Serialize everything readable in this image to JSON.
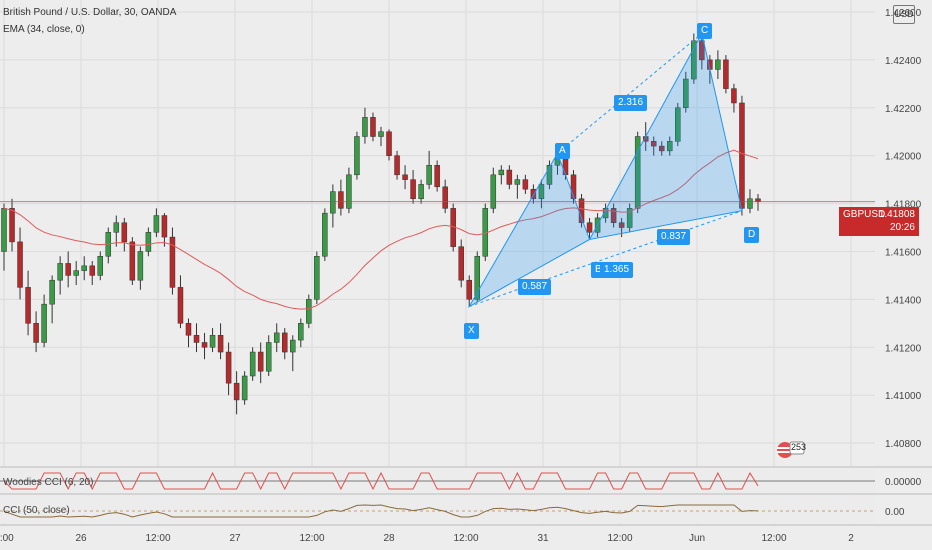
{
  "header": {
    "title": "British Pound / U.S. Dollar, 30, OANDA",
    "ema_label": "EMA (34, close, 0)",
    "woodies_label": "Woodies CCI (6, 20)",
    "cci_label": "CCI (50, close)",
    "currency": "USD"
  },
  "price_tag": {
    "symbol": "GBPUSD",
    "price": "1.41808",
    "countdown": "20:26"
  },
  "badge_number": "253",
  "chart_data": {
    "type": "candlestick",
    "price_axis": {
      "ticks": [
        "1.42600",
        "1.42400",
        "1.42200",
        "1.42000",
        "1.41800",
        "1.41600",
        "1.41400",
        "1.41200",
        "1.41000",
        "1.40800"
      ],
      "range": [
        1.407,
        1.4265
      ]
    },
    "time_axis": {
      "ticks": [
        "2:00",
        "26",
        "12:00",
        "27",
        "12:00",
        "28",
        "12:00",
        "31",
        "12:00",
        "Jun",
        "12:00",
        "2"
      ]
    },
    "last_price": 1.41808,
    "indicators": [
      {
        "name": "Woodies CCI (6, 20)",
        "ticks": [
          "0.00000"
        ]
      },
      {
        "name": "CCI (50, close)",
        "ticks": [
          "0.00"
        ]
      }
    ],
    "pattern": {
      "points": [
        {
          "label": "X",
          "price": 1.4137
        },
        {
          "label": "A",
          "price": 1.4201
        },
        {
          "label": "B",
          "price": 1.4165
        },
        {
          "label": "C",
          "price": 1.4251
        },
        {
          "label": "D",
          "price": 1.4177
        }
      ],
      "ratios": [
        "0.587",
        "2.316",
        "0.837",
        "1.365"
      ]
    },
    "candles": [
      [
        1.416,
        1.418,
        1.4152,
        1.4178
      ],
      [
        1.4178,
        1.4182,
        1.416,
        1.4164
      ],
      [
        1.4164,
        1.417,
        1.414,
        1.4145
      ],
      [
        1.4145,
        1.4152,
        1.4125,
        1.413
      ],
      [
        1.413,
        1.4135,
        1.4118,
        1.4122
      ],
      [
        1.4122,
        1.4142,
        1.412,
        1.4138
      ],
      [
        1.4138,
        1.415,
        1.413,
        1.4148
      ],
      [
        1.4148,
        1.4158,
        1.4142,
        1.4155
      ],
      [
        1.4155,
        1.416,
        1.4145,
        1.415
      ],
      [
        1.415,
        1.4156,
        1.4146,
        1.4152
      ],
      [
        1.4152,
        1.4158,
        1.4148,
        1.4154
      ],
      [
        1.4154,
        1.4156,
        1.4146,
        1.415
      ],
      [
        1.415,
        1.416,
        1.4148,
        1.4158
      ],
      [
        1.4158,
        1.417,
        1.4155,
        1.4168
      ],
      [
        1.4168,
        1.4175,
        1.4162,
        1.4172
      ],
      [
        1.4172,
        1.4174,
        1.416,
        1.4164
      ],
      [
        1.4164,
        1.4166,
        1.4146,
        1.4148
      ],
      [
        1.4148,
        1.4162,
        1.4144,
        1.416
      ],
      [
        1.416,
        1.417,
        1.4158,
        1.4168
      ],
      [
        1.4168,
        1.4178,
        1.4166,
        1.4175
      ],
      [
        1.4175,
        1.4176,
        1.4162,
        1.4166
      ],
      [
        1.4166,
        1.417,
        1.4142,
        1.4145
      ],
      [
        1.4145,
        1.415,
        1.4128,
        1.413
      ],
      [
        1.413,
        1.4132,
        1.412,
        1.4125
      ],
      [
        1.4125,
        1.413,
        1.4118,
        1.4122
      ],
      [
        1.4122,
        1.4126,
        1.4115,
        1.412
      ],
      [
        1.412,
        1.4128,
        1.4118,
        1.4125
      ],
      [
        1.4125,
        1.413,
        1.4115,
        1.4118
      ],
      [
        1.4118,
        1.4122,
        1.41,
        1.4105
      ],
      [
        1.4105,
        1.411,
        1.4092,
        1.4098
      ],
      [
        1.4098,
        1.411,
        1.4096,
        1.4108
      ],
      [
        1.4108,
        1.412,
        1.4106,
        1.4118
      ],
      [
        1.4118,
        1.4122,
        1.4105,
        1.411
      ],
      [
        1.411,
        1.4125,
        1.4108,
        1.4122
      ],
      [
        1.4122,
        1.413,
        1.4118,
        1.4126
      ],
      [
        1.4126,
        1.4128,
        1.4115,
        1.4118
      ],
      [
        1.4118,
        1.4125,
        1.411,
        1.4123
      ],
      [
        1.4123,
        1.4132,
        1.412,
        1.413
      ],
      [
        1.413,
        1.4142,
        1.4128,
        1.414
      ],
      [
        1.414,
        1.416,
        1.4138,
        1.4158
      ],
      [
        1.4158,
        1.4178,
        1.4156,
        1.4176
      ],
      [
        1.4176,
        1.4188,
        1.417,
        1.4185
      ],
      [
        1.4185,
        1.419,
        1.4175,
        1.4178
      ],
      [
        1.4178,
        1.4195,
        1.4176,
        1.4192
      ],
      [
        1.4192,
        1.421,
        1.419,
        1.4208
      ],
      [
        1.4208,
        1.422,
        1.4205,
        1.4216
      ],
      [
        1.4216,
        1.4218,
        1.4206,
        1.4208
      ],
      [
        1.4208,
        1.4212,
        1.4204,
        1.421
      ],
      [
        1.421,
        1.4211,
        1.4198,
        1.42
      ],
      [
        1.42,
        1.4202,
        1.419,
        1.4192
      ],
      [
        1.4192,
        1.4196,
        1.4186,
        1.419
      ],
      [
        1.419,
        1.4194,
        1.418,
        1.4182
      ],
      [
        1.4182,
        1.419,
        1.418,
        1.4188
      ],
      [
        1.4188,
        1.4202,
        1.4186,
        1.4196
      ],
      [
        1.4196,
        1.4198,
        1.4185,
        1.4187
      ],
      [
        1.4187,
        1.419,
        1.4176,
        1.4178
      ],
      [
        1.4178,
        1.418,
        1.416,
        1.4162
      ],
      [
        1.4162,
        1.4165,
        1.4145,
        1.4148
      ],
      [
        1.4148,
        1.415,
        1.4137,
        1.414
      ],
      [
        1.414,
        1.416,
        1.4139,
        1.4158
      ],
      [
        1.4158,
        1.418,
        1.4156,
        1.4178
      ],
      [
        1.4178,
        1.4195,
        1.4176,
        1.4192
      ],
      [
        1.4192,
        1.4196,
        1.4188,
        1.4194
      ],
      [
        1.4194,
        1.4196,
        1.4186,
        1.4188
      ],
      [
        1.4188,
        1.4192,
        1.4182,
        1.419
      ],
      [
        1.419,
        1.4192,
        1.4184,
        1.4186
      ],
      [
        1.4186,
        1.4188,
        1.418,
        1.4182
      ],
      [
        1.4182,
        1.419,
        1.4178,
        1.4188
      ],
      [
        1.4188,
        1.4198,
        1.4186,
        1.4196
      ],
      [
        1.4196,
        1.4201,
        1.4192,
        1.4199
      ],
      [
        1.4199,
        1.42,
        1.419,
        1.4192
      ],
      [
        1.4192,
        1.4194,
        1.418,
        1.4182
      ],
      [
        1.4182,
        1.4184,
        1.417,
        1.4172
      ],
      [
        1.4172,
        1.4174,
        1.4165,
        1.4168
      ],
      [
        1.4168,
        1.4176,
        1.4166,
        1.4174
      ],
      [
        1.4174,
        1.418,
        1.4172,
        1.4178
      ],
      [
        1.4178,
        1.418,
        1.417,
        1.4172
      ],
      [
        1.4172,
        1.4174,
        1.4166,
        1.417
      ],
      [
        1.417,
        1.418,
        1.4168,
        1.4178
      ],
      [
        1.4178,
        1.421,
        1.4176,
        1.4208
      ],
      [
        1.4208,
        1.4214,
        1.4202,
        1.4206
      ],
      [
        1.4206,
        1.4208,
        1.42,
        1.4204
      ],
      [
        1.4204,
        1.4206,
        1.42,
        1.4202
      ],
      [
        1.4202,
        1.4208,
        1.42,
        1.4206
      ],
      [
        1.4206,
        1.4222,
        1.4204,
        1.422
      ],
      [
        1.422,
        1.4235,
        1.4218,
        1.4232
      ],
      [
        1.4232,
        1.4251,
        1.423,
        1.4248
      ],
      [
        1.4248,
        1.425,
        1.4236,
        1.424
      ],
      [
        1.424,
        1.4242,
        1.423,
        1.4236
      ],
      [
        1.4236,
        1.4244,
        1.4232,
        1.424
      ],
      [
        1.424,
        1.4242,
        1.4226,
        1.4228
      ],
      [
        1.4228,
        1.423,
        1.4218,
        1.4222
      ],
      [
        1.4222,
        1.4225,
        1.4175,
        1.4178
      ],
      [
        1.4178,
        1.4186,
        1.4176,
        1.4182
      ],
      [
        1.4182,
        1.4184,
        1.4177,
        1.41808
      ]
    ]
  }
}
